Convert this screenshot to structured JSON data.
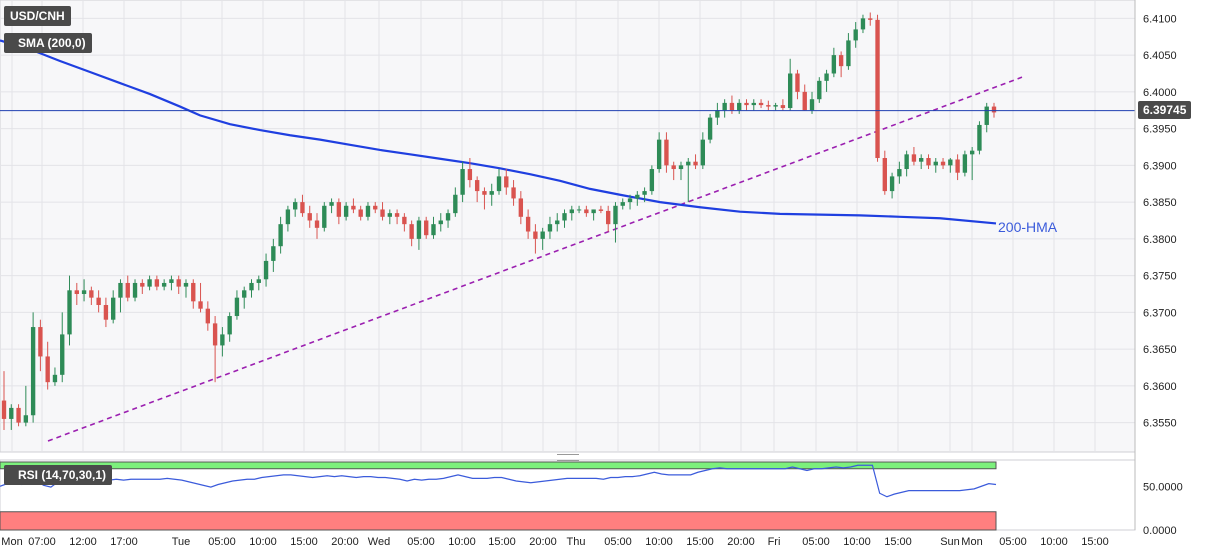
{
  "main": {
    "symbol_label": "USD/CNH",
    "sma_label": "SMA (200,0)",
    "price_tag": "6.39745",
    "hma_label": "200-HMA"
  },
  "rsi": {
    "label": "RSI (14,70,30,1)"
  },
  "colors": {
    "up": "#2e8b57",
    "down": "#d9534f",
    "sma": "#1f3fe0",
    "trend": "#9b1fb0",
    "rsi_line": "#3b5bdb",
    "rsi_high_zone": "#7cf07c",
    "rsi_low_zone": "#ff7f7f"
  },
  "chart_data": [
    {
      "type": "candlestick",
      "title": "USD/CNH",
      "ylim": [
        6.351,
        6.4125
      ],
      "y_ticks": [
        "6.4100",
        "6.4050",
        "6.4000",
        "6.3950",
        "6.3900",
        "6.3850",
        "6.3800",
        "6.3750",
        "6.3700",
        "6.3650",
        "6.3600",
        "6.3550"
      ],
      "x_ticks": [
        "Mon",
        "07:00",
        "12:00",
        "17:00",
        "Tue",
        "05:00",
        "10:00",
        "15:00",
        "20:00",
        "Wed",
        "05:00",
        "10:00",
        "15:00",
        "20:00",
        "Thu",
        "05:00",
        "10:00",
        "15:00",
        "20:00",
        "Fri",
        "05:00",
        "10:00",
        "15:00",
        "Sun",
        "Mon",
        "05:00",
        "10:00",
        "15:00"
      ],
      "last_price": 6.39745,
      "sma_200": [
        [
          0,
          6.407
        ],
        [
          30,
          6.4058
        ],
        [
          60,
          6.4042
        ],
        [
          90,
          6.4027
        ],
        [
          120,
          6.4012
        ],
        [
          150,
          6.3997
        ],
        [
          180,
          6.398
        ],
        [
          200,
          6.3968
        ],
        [
          230,
          6.3956
        ],
        [
          260,
          6.3948
        ],
        [
          290,
          6.3941
        ],
        [
          320,
          6.3935
        ],
        [
          350,
          6.3928
        ],
        [
          380,
          6.3921
        ],
        [
          410,
          6.3915
        ],
        [
          440,
          6.3909
        ],
        [
          470,
          6.3903
        ],
        [
          500,
          6.3896
        ],
        [
          530,
          6.3888
        ],
        [
          560,
          6.3879
        ],
        [
          590,
          6.3868
        ],
        [
          620,
          6.386
        ],
        [
          660,
          6.385
        ],
        [
          700,
          6.3843
        ],
        [
          740,
          6.3837
        ],
        [
          780,
          6.3834
        ],
        [
          820,
          6.3833
        ],
        [
          860,
          6.3832
        ],
        [
          900,
          6.383
        ],
        [
          940,
          6.3828
        ],
        [
          996,
          6.3821
        ]
      ],
      "trendline": [
        [
          48,
          6.3525
        ],
        [
          1022,
          6.402
        ]
      ],
      "candles": [
        [
          6.358,
          6.362,
          6.354,
          6.3555
        ],
        [
          6.3555,
          6.3575,
          6.354,
          6.357
        ],
        [
          6.357,
          6.3575,
          6.3545,
          6.355
        ],
        [
          6.355,
          6.36,
          6.3545,
          6.356
        ],
        [
          6.356,
          6.37,
          6.355,
          6.368
        ],
        [
          6.368,
          6.369,
          6.362,
          6.364
        ],
        [
          6.364,
          6.366,
          6.3595,
          6.3605
        ],
        [
          6.3605,
          6.3625,
          6.36,
          6.3615
        ],
        [
          6.3615,
          6.37,
          6.3605,
          6.367
        ],
        [
          6.367,
          6.375,
          6.3655,
          6.373
        ],
        [
          6.373,
          6.374,
          6.371,
          6.3725
        ],
        [
          6.3725,
          6.3745,
          6.3715,
          6.373
        ],
        [
          6.373,
          6.3735,
          6.371,
          6.372
        ],
        [
          6.372,
          6.373,
          6.37,
          6.371
        ],
        [
          6.371,
          6.372,
          6.368,
          6.369
        ],
        [
          6.369,
          6.373,
          6.3685,
          6.372
        ],
        [
          6.372,
          6.3745,
          6.37,
          6.374
        ],
        [
          6.374,
          6.375,
          6.3715,
          6.372
        ],
        [
          6.372,
          6.3745,
          6.3715,
          6.374
        ],
        [
          6.374,
          6.3745,
          6.3725,
          6.3735
        ],
        [
          6.3735,
          6.375,
          6.373,
          6.3745
        ],
        [
          6.3745,
          6.375,
          6.373,
          6.3735
        ],
        [
          6.3735,
          6.3745,
          6.373,
          6.374
        ],
        [
          6.374,
          6.375,
          6.373,
          6.3745
        ],
        [
          6.3745,
          6.375,
          6.3725,
          6.3735
        ],
        [
          6.3735,
          6.3745,
          6.372,
          6.374
        ],
        [
          6.374,
          6.3745,
          6.3705,
          6.3715
        ],
        [
          6.3715,
          6.374,
          6.37,
          6.3705
        ],
        [
          6.3705,
          6.3715,
          6.3675,
          6.3685
        ],
        [
          6.3685,
          6.3695,
          6.3605,
          6.3655
        ],
        [
          6.3655,
          6.368,
          6.364,
          6.367
        ],
        [
          6.367,
          6.37,
          6.366,
          6.3695
        ],
        [
          6.3695,
          6.373,
          6.369,
          6.372
        ],
        [
          6.372,
          6.3735,
          6.3705,
          6.373
        ],
        [
          6.373,
          6.3745,
          6.372,
          6.374
        ],
        [
          6.374,
          6.375,
          6.373,
          6.3745
        ],
        [
          6.3745,
          6.378,
          6.3735,
          6.377
        ],
        [
          6.377,
          6.38,
          6.3755,
          6.379
        ],
        [
          6.379,
          6.383,
          6.378,
          6.382
        ],
        [
          6.382,
          6.3845,
          6.381,
          6.384
        ],
        [
          6.384,
          6.3855,
          6.383,
          6.385
        ],
        [
          6.385,
          6.386,
          6.383,
          6.3835
        ],
        [
          6.3835,
          6.3845,
          6.3815,
          6.3825
        ],
        [
          6.3825,
          6.3835,
          6.38,
          6.3815
        ],
        [
          6.3815,
          6.385,
          6.381,
          6.3845
        ],
        [
          6.3845,
          6.3855,
          6.3835,
          6.385
        ],
        [
          6.385,
          6.3855,
          6.382,
          6.383
        ],
        [
          6.383,
          6.385,
          6.3825,
          6.3845
        ],
        [
          6.3845,
          6.3855,
          6.3835,
          6.384
        ],
        [
          6.384,
          6.3845,
          6.3825,
          6.383
        ],
        [
          6.383,
          6.385,
          6.3825,
          6.3845
        ],
        [
          6.3845,
          6.385,
          6.3835,
          6.384
        ],
        [
          6.384,
          6.385,
          6.3825,
          6.383
        ],
        [
          6.383,
          6.384,
          6.382,
          6.3835
        ],
        [
          6.3835,
          6.384,
          6.382,
          6.383
        ],
        [
          6.383,
          6.3835,
          6.381,
          6.382
        ],
        [
          6.382,
          6.3825,
          6.379,
          6.38
        ],
        [
          6.38,
          6.383,
          6.3785,
          6.3825
        ],
        [
          6.3825,
          6.383,
          6.38,
          6.3805
        ],
        [
          6.3805,
          6.383,
          6.38,
          6.382
        ],
        [
          6.382,
          6.3835,
          6.381,
          6.3825
        ],
        [
          6.3825,
          6.384,
          6.3815,
          6.3835
        ],
        [
          6.3835,
          6.387,
          6.383,
          6.386
        ],
        [
          6.386,
          6.3905,
          6.385,
          6.3895
        ],
        [
          6.3895,
          6.391,
          6.387,
          6.388
        ],
        [
          6.388,
          6.3885,
          6.385,
          6.3865
        ],
        [
          6.3865,
          6.387,
          6.384,
          6.386
        ],
        [
          6.386,
          6.3875,
          6.3845,
          6.3865
        ],
        [
          6.3865,
          6.3895,
          6.386,
          6.3885
        ],
        [
          6.3885,
          6.3895,
          6.386,
          6.387
        ],
        [
          6.387,
          6.388,
          6.3845,
          6.3855
        ],
        [
          6.3855,
          6.3865,
          6.382,
          6.383
        ],
        [
          6.383,
          6.384,
          6.38,
          6.381
        ],
        [
          6.381,
          6.382,
          6.378,
          6.38
        ],
        [
          6.38,
          6.3815,
          6.3785,
          6.381
        ],
        [
          6.381,
          6.383,
          6.38,
          6.382
        ],
        [
          6.382,
          6.3835,
          6.381,
          6.3825
        ],
        [
          6.3825,
          6.384,
          6.3815,
          6.3835
        ],
        [
          6.3835,
          6.3845,
          6.3825,
          6.384
        ],
        [
          6.384,
          6.3845,
          6.3835,
          6.384
        ],
        [
          6.384,
          6.3845,
          6.383,
          6.3835
        ],
        [
          6.3835,
          6.384,
          6.3825,
          6.384
        ],
        [
          6.384,
          6.3845,
          6.3835,
          6.3838
        ],
        [
          6.3838,
          6.3845,
          6.381,
          6.382
        ],
        [
          6.382,
          6.385,
          6.3795,
          6.3845
        ],
        [
          6.3845,
          6.3855,
          6.384,
          6.385
        ],
        [
          6.385,
          6.386,
          6.384,
          6.3855
        ],
        [
          6.3855,
          6.3865,
          6.3845,
          6.386
        ],
        [
          6.386,
          6.387,
          6.385,
          6.3865
        ],
        [
          6.3865,
          6.39,
          6.386,
          6.3895
        ],
        [
          6.3895,
          6.3945,
          6.389,
          6.3935
        ],
        [
          6.3935,
          6.3945,
          6.389,
          6.39
        ],
        [
          6.39,
          6.3905,
          6.388,
          6.3895
        ],
        [
          6.3895,
          6.3905,
          6.388,
          6.39
        ],
        [
          6.39,
          6.391,
          6.385,
          6.3905
        ],
        [
          6.3905,
          6.3915,
          6.3895,
          6.39
        ],
        [
          6.39,
          6.3945,
          6.3895,
          6.3935
        ],
        [
          6.3935,
          6.397,
          6.393,
          6.3965
        ],
        [
          6.3965,
          6.3985,
          6.3955,
          6.3975
        ],
        [
          6.3975,
          6.399,
          6.3965,
          6.3985
        ],
        [
          6.3985,
          6.3995,
          6.397,
          6.3975
        ],
        [
          6.3975,
          6.399,
          6.397,
          6.3985
        ],
        [
          6.3985,
          6.399,
          6.3975,
          6.3982
        ],
        [
          6.3982,
          6.399,
          6.3975,
          6.3985
        ],
        [
          6.3985,
          6.399,
          6.3978,
          6.3982
        ],
        [
          6.3982,
          6.3988,
          6.3975,
          6.398
        ],
        [
          6.398,
          6.3985,
          6.3975,
          6.3982
        ],
        [
          6.3982,
          6.399,
          6.3975,
          6.3978
        ],
        [
          6.3978,
          6.4045,
          6.3975,
          6.4025
        ],
        [
          6.4025,
          6.403,
          6.399,
          6.4
        ],
        [
          6.4,
          6.401,
          6.3975,
          6.3975
        ],
        [
          6.3975,
          6.4,
          6.397,
          6.399
        ],
        [
          6.399,
          6.402,
          6.3985,
          6.4015
        ],
        [
          6.4015,
          6.403,
          6.4,
          6.4025
        ],
        [
          6.4025,
          6.406,
          6.402,
          6.405
        ],
        [
          6.405,
          6.4055,
          6.402,
          6.4035
        ],
        [
          6.4035,
          6.408,
          6.403,
          6.407
        ],
        [
          6.407,
          6.4095,
          6.406,
          6.4085
        ],
        [
          6.4085,
          6.4105,
          6.408,
          6.41
        ],
        [
          6.41,
          6.4108,
          6.409,
          6.4098
        ],
        [
          6.4098,
          6.4105,
          6.3905,
          6.391
        ],
        [
          6.391,
          6.392,
          6.386,
          6.3865
        ],
        [
          6.3865,
          6.389,
          6.3855,
          6.3885
        ],
        [
          6.3885,
          6.3905,
          6.3875,
          6.3895
        ],
        [
          6.3895,
          6.392,
          6.3885,
          6.3915
        ],
        [
          6.3915,
          6.3925,
          6.39,
          6.3905
        ],
        [
          6.3905,
          6.3915,
          6.3895,
          6.391
        ],
        [
          6.391,
          6.3915,
          6.3895,
          6.39
        ],
        [
          6.39,
          6.391,
          6.389,
          6.3905
        ],
        [
          6.3905,
          6.391,
          6.3895,
          6.39
        ],
        [
          6.39,
          6.391,
          6.389,
          6.3908
        ],
        [
          6.3908,
          6.3915,
          6.388,
          6.389
        ],
        [
          6.389,
          6.392,
          6.3885,
          6.3915
        ],
        [
          6.3915,
          6.3925,
          6.388,
          6.392
        ],
        [
          6.392,
          6.396,
          6.3915,
          6.3955
        ],
        [
          6.3955,
          6.3985,
          6.3945,
          6.398
        ],
        [
          6.398,
          6.3985,
          6.3965,
          6.3972
        ]
      ],
      "rsi_values": [
        50,
        53,
        55,
        52,
        54,
        56,
        51,
        49,
        55,
        58,
        57,
        58,
        57,
        56,
        55,
        57,
        58,
        57,
        58,
        58,
        58,
        58,
        58,
        59,
        58,
        57,
        55,
        53,
        51,
        49,
        52,
        54,
        56,
        57,
        58,
        58,
        60,
        61,
        62,
        63,
        63,
        62,
        61,
        60,
        61,
        62,
        61,
        62,
        61,
        60,
        61,
        61,
        60,
        60,
        59,
        58,
        56,
        58,
        57,
        58,
        58,
        59,
        61,
        63,
        61,
        59,
        59,
        59,
        60,
        60,
        58,
        56,
        55,
        54,
        55,
        56,
        57,
        58,
        59,
        59,
        59,
        59,
        59,
        58,
        60,
        60,
        61,
        61,
        62,
        64,
        66,
        64,
        63,
        63,
        63,
        63,
        66,
        68,
        70,
        71,
        70,
        70,
        70,
        70,
        70,
        70,
        70,
        70,
        70,
        72,
        70,
        68,
        70,
        70,
        71,
        72,
        71,
        72,
        74,
        74,
        74,
        42,
        38,
        41,
        43,
        45,
        45,
        45,
        45,
        45,
        45,
        45,
        45,
        46,
        47,
        50,
        53,
        52
      ],
      "rsi_levels": {
        "upper": 70,
        "lower": 30
      },
      "rsi_ylim": [
        0,
        80
      ],
      "rsi_y_ticks": [
        "50.0000",
        "0.0000"
      ]
    }
  ]
}
